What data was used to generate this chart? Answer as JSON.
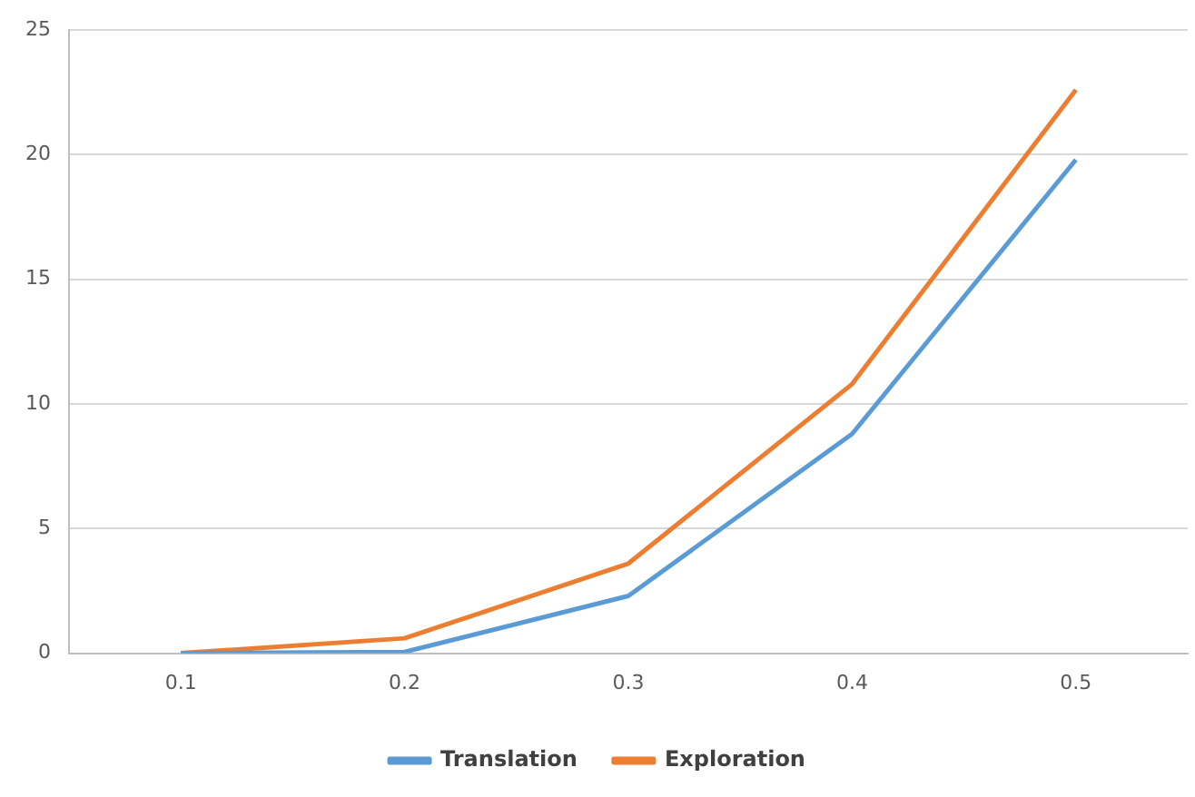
{
  "chart_data": {
    "type": "line",
    "categories": [
      "0.1",
      "0.2",
      "0.3",
      "0.4",
      "0.5"
    ],
    "series": [
      {
        "name": "Translation",
        "color": "#5b9bd5",
        "values": [
          0,
          0.05,
          2.3,
          8.8,
          19.8
        ]
      },
      {
        "name": "Exploration",
        "color": "#ed7d31",
        "values": [
          0,
          0.6,
          3.6,
          10.8,
          22.6
        ]
      }
    ],
    "ylim": [
      0,
      25
    ],
    "yticks": [
      0,
      5,
      10,
      15,
      20,
      25
    ],
    "grid": "y",
    "legend": "bottom",
    "marker": "none",
    "line_style": "solid"
  }
}
